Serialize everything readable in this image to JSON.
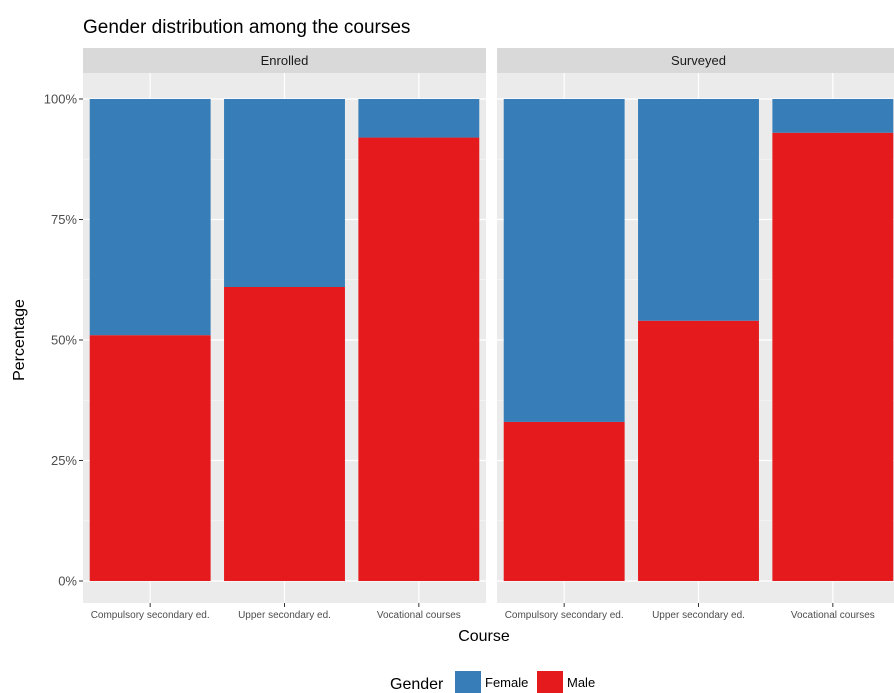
{
  "chart_data": {
    "type": "bar",
    "stacked": true,
    "title": "Gender distribution among the courses",
    "xlabel": "Course",
    "ylabel": "Percentage",
    "ylim": [
      0,
      1
    ],
    "yticks": [
      {
        "value": 0,
        "label": "0%"
      },
      {
        "value": 0.25,
        "label": "25%"
      },
      {
        "value": 0.5,
        "label": "50%"
      },
      {
        "value": 0.75,
        "label": "75%"
      },
      {
        "value": 1,
        "label": "100%"
      }
    ],
    "grid": true,
    "legend": {
      "title": "Gender",
      "position": "bottom",
      "entries": [
        {
          "name": "Female",
          "color": "#377EB8"
        },
        {
          "name": "Male",
          "color": "#E41A1C"
        }
      ]
    },
    "categories": [
      "Compulsory secondary ed.",
      "Upper secondary ed.",
      "Vocational courses"
    ],
    "facets": [
      {
        "label": "Enrolled",
        "series": [
          {
            "name": "Male",
            "values": [
              0.51,
              0.61,
              0.92
            ]
          },
          {
            "name": "Female",
            "values": [
              0.49,
              0.39,
              0.08
            ]
          }
        ]
      },
      {
        "label": "Surveyed",
        "series": [
          {
            "name": "Male",
            "values": [
              0.33,
              0.54,
              0.93
            ]
          },
          {
            "name": "Female",
            "values": [
              0.67,
              0.46,
              0.07
            ]
          }
        ]
      }
    ]
  }
}
